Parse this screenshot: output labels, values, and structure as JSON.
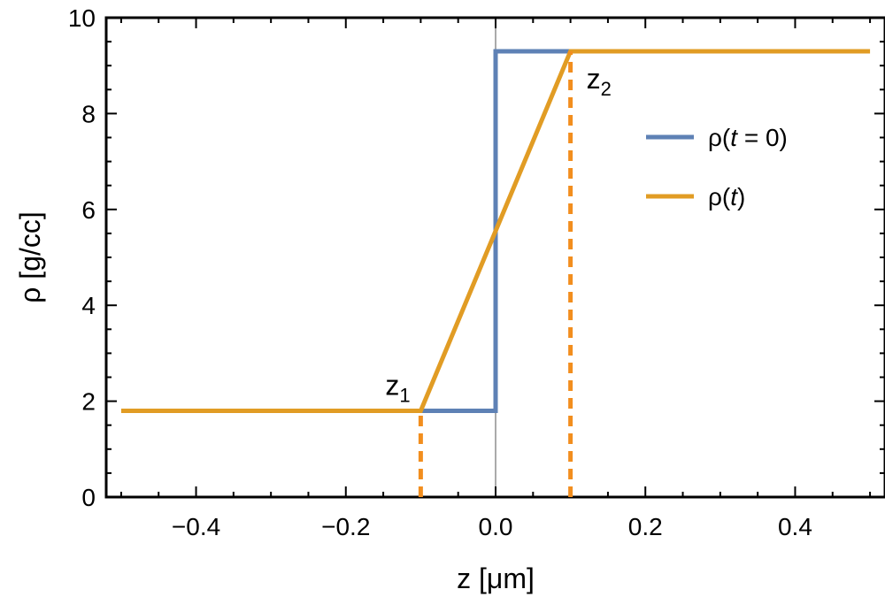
{
  "chart_data": {
    "type": "line",
    "xlabel": "z [μm]",
    "ylabel": "ρ [g/cc]",
    "xlim": [
      -0.52,
      0.52
    ],
    "ylim": [
      0,
      10
    ],
    "x_ticks": [
      -0.4,
      -0.2,
      0.0,
      0.2,
      0.4
    ],
    "x_tick_labels": [
      "−0.4",
      "−0.2",
      "0.0",
      "0.2",
      "0.4"
    ],
    "y_ticks": [
      0,
      2,
      4,
      6,
      8,
      10
    ],
    "y_tick_labels": [
      "0",
      "2",
      "4",
      "6",
      "8",
      "10"
    ],
    "series": [
      {
        "name": "ρ(t = 0)",
        "color": "#5E81B5",
        "x": [
          -0.1,
          0.0,
          0.0,
          0.1
        ],
        "y": [
          1.8,
          1.8,
          9.3,
          9.3
        ]
      },
      {
        "name": "ρ(t)",
        "color": "#E19C24",
        "x": [
          -0.5,
          -0.1,
          0.1,
          0.5
        ],
        "y": [
          1.8,
          1.8,
          9.3,
          9.3
        ]
      }
    ],
    "vertical_markers": [
      {
        "x": -0.1,
        "y_top": 1.8,
        "color": "#F28E1E",
        "style": "dashed"
      },
      {
        "x": 0.1,
        "y_top": 9.3,
        "color": "#F28E1E",
        "style": "dashed"
      }
    ],
    "annotations": [
      {
        "base": "z",
        "sub": "1",
        "x": -0.1,
        "y": 1.8
      },
      {
        "base": "z",
        "sub": "2",
        "x": 0.1,
        "y": 9.3
      }
    ],
    "zero_line_x": 0.0,
    "grid": false,
    "legend_position": "right",
    "legend_entries": [
      {
        "base": "ρ(",
        "italic": "t",
        "rest": " = 0)"
      },
      {
        "base": "ρ(",
        "italic": "t",
        "rest": ")"
      }
    ]
  }
}
